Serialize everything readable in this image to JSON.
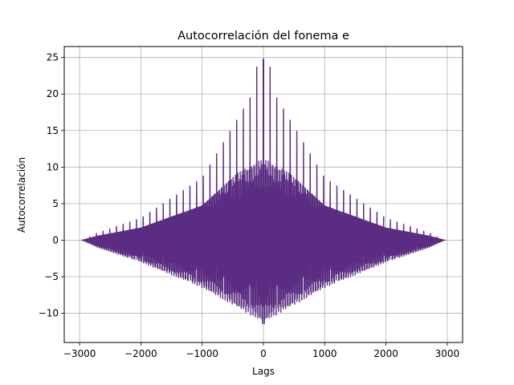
{
  "chart_data": {
    "type": "line",
    "title": "Autocorrelación del fonema e",
    "xlabel": "Lags",
    "ylabel": "Autocorrelación",
    "xlim": [
      -3250,
      3250
    ],
    "ylim": [
      -14,
      26.5
    ],
    "xticks": [
      -3000,
      -2000,
      -1000,
      0,
      1000,
      2000,
      3000
    ],
    "yticks": [
      -10,
      -5,
      0,
      5,
      10,
      15,
      20,
      25
    ],
    "xtick_labels": [
      "−3000",
      "−2000",
      "−1000",
      "0",
      "1000",
      "2000",
      "3000"
    ],
    "ytick_labels": [
      "−10",
      "−5",
      "0",
      "5",
      "10",
      "15",
      "20",
      "25"
    ],
    "grid": true,
    "line_color": "#5a2d82",
    "series": [
      {
        "name": "",
        "description_only": false,
        "x_range": [
          -2950,
          2950
        ],
        "peak_at_zero": 24.8,
        "pitch_period_lags": 109,
        "upper_envelope_peaks": [
          {
            "x": -2700,
            "y": 1.0
          },
          {
            "x": -2000,
            "y": 3.0
          },
          {
            "x": -1000,
            "y": 8.5
          },
          {
            "x": -109,
            "y": 21.0
          },
          {
            "x": 109,
            "y": 21.0
          },
          {
            "x": 1000,
            "y": 8.5
          },
          {
            "x": 2000,
            "y": 3.0
          },
          {
            "x": 2700,
            "y": 1.0
          }
        ],
        "lower_envelope": [
          {
            "x": -2700,
            "y": -1.0
          },
          {
            "x": -2000,
            "y": -3.0
          },
          {
            "x": -1000,
            "y": -6.5
          },
          {
            "x": -50,
            "y": -11.0
          },
          {
            "x": 0,
            "y": -12.0
          },
          {
            "x": 50,
            "y": -11.0
          },
          {
            "x": 1000,
            "y": -6.5
          },
          {
            "x": 2000,
            "y": -3.0
          },
          {
            "x": 2700,
            "y": -1.0
          }
        ]
      }
    ]
  }
}
